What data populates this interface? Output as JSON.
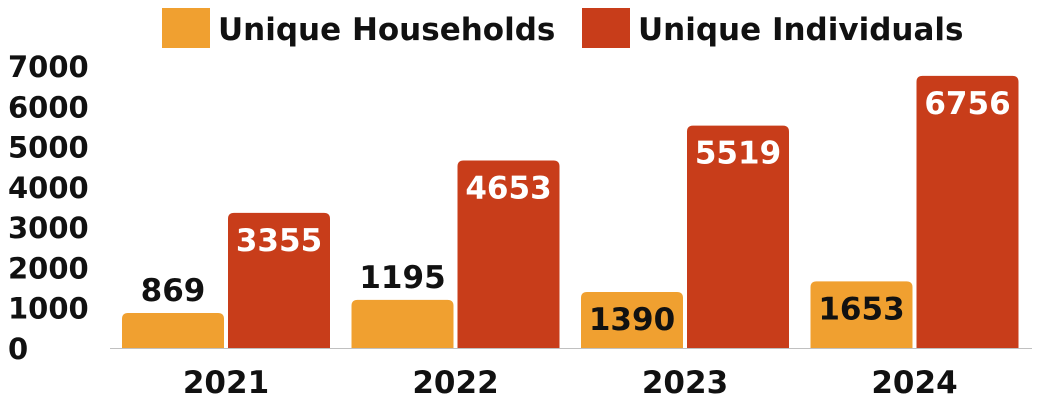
{
  "chart_data": {
    "type": "bar",
    "categories": [
      "2021",
      "2022",
      "2023",
      "2024"
    ],
    "series": [
      {
        "name": "Unique Households",
        "values": [
          869,
          1195,
          1390,
          1653
        ],
        "color": "#f0a030"
      },
      {
        "name": "Unique Individuals",
        "values": [
          3355,
          4653,
          5519,
          6756
        ],
        "color": "#c83d1a"
      }
    ],
    "yticks": [
      0,
      1000,
      2000,
      3000,
      4000,
      5000,
      6000,
      7000
    ],
    "ylim": [
      0,
      7000
    ],
    "grid": false,
    "legend_position": "top-right",
    "data_labels": true
  }
}
